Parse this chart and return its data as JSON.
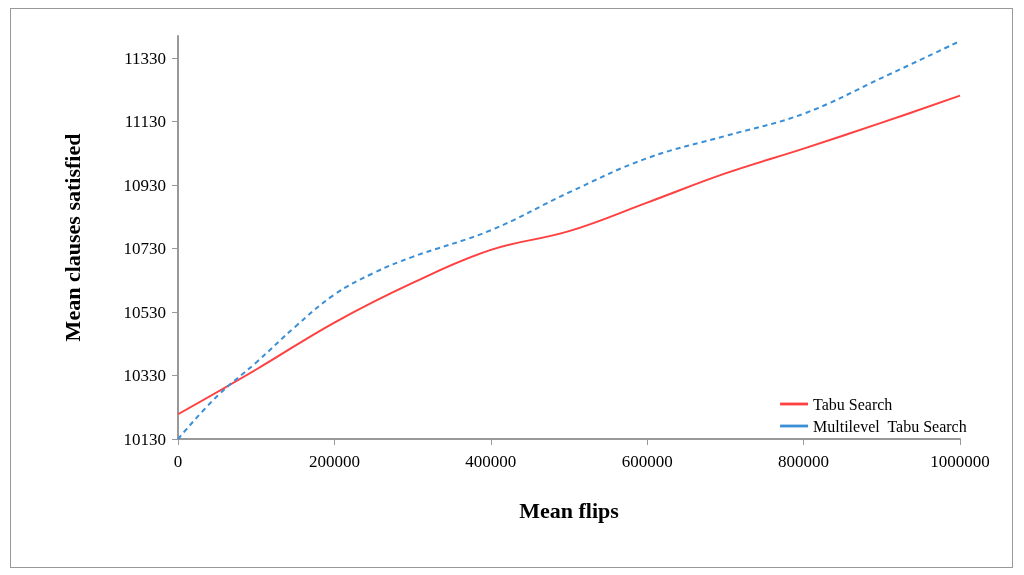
{
  "chart_data": {
    "type": "line",
    "xlabel": "Mean flips",
    "ylabel": "Mean clauses satisfied",
    "xlim": [
      0,
      1000000
    ],
    "xticks": [
      0,
      200000,
      400000,
      600000,
      800000,
      1000000
    ],
    "ylim": [
      10130,
      11400
    ],
    "yticks": [
      10130,
      10330,
      10530,
      10730,
      10930,
      11130,
      11330
    ],
    "grid": false,
    "legend": "bottom right",
    "marker": "none",
    "series": [
      {
        "name": "Tabu Search",
        "color": "#ff4040",
        "line_style": "solid",
        "x": [
          0,
          100000,
          200000,
          300000,
          400000,
          500000,
          600000,
          700000,
          800000,
          900000,
          1000000
        ],
        "values": [
          10208,
          10349,
          10497,
          10622,
          10726,
          10785,
          10875,
          10967,
          11045,
          11127,
          11212
        ]
      },
      {
        "name": "Multilevel  Tabu Search",
        "color": "#3a8fd6",
        "line_style": "dashed",
        "x": [
          0,
          50000,
          100000,
          150000,
          200000,
          250000,
          300000,
          400000,
          500000,
          600000,
          700000,
          800000,
          900000,
          1000000
        ],
        "values": [
          10130,
          10265,
          10371,
          10484,
          10585,
          10653,
          10704,
          10788,
          10907,
          11015,
          11085,
          11155,
          11268,
          11384
        ]
      }
    ]
  }
}
